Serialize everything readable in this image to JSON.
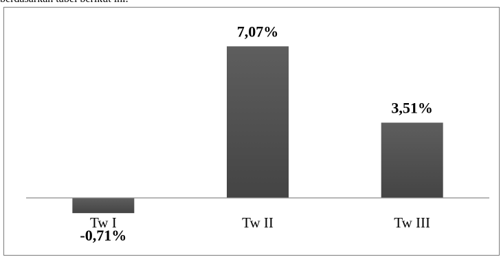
{
  "caption_fragment": "berdasarkan tabel berikut ini.",
  "chart_data": {
    "type": "bar",
    "categories": [
      "Tw I",
      "Tw II",
      "Tw III"
    ],
    "values": [
      -0.71,
      7.07,
      3.51
    ],
    "data_labels": [
      "-0,71%",
      "7,07%",
      "3,51%"
    ],
    "title": "",
    "xlabel": "",
    "ylabel": "",
    "ylim": [
      -1.2,
      7.5
    ],
    "grid": false,
    "legend": "none",
    "bar_color": "#555555"
  }
}
